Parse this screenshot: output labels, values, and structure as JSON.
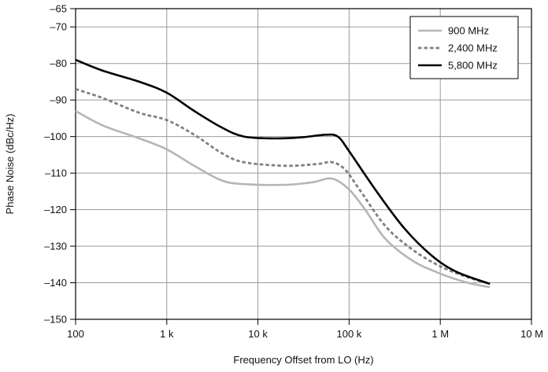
{
  "chart_data": {
    "type": "line",
    "xlabel": "Frequency Offset from LO (Hz)",
    "ylabel": "Phase Noise (dBc/Hz)",
    "x_scale": "log",
    "xlim": [
      100,
      10000000
    ],
    "ylim": [
      -150,
      -65
    ],
    "x_ticks": [
      {
        "value": 100,
        "label": "100"
      },
      {
        "value": 1000,
        "label": "1 k"
      },
      {
        "value": 10000,
        "label": "10 k"
      },
      {
        "value": 100000,
        "label": "100 k"
      },
      {
        "value": 1000000,
        "label": "1 M"
      },
      {
        "value": 10000000,
        "label": "10 M"
      }
    ],
    "y_ticks": [
      {
        "value": -65,
        "label": "–65"
      },
      {
        "value": -70,
        "label": "–70"
      },
      {
        "value": -80,
        "label": "–80"
      },
      {
        "value": -90,
        "label": "–90"
      },
      {
        "value": -100,
        "label": "–100"
      },
      {
        "value": -110,
        "label": "–110"
      },
      {
        "value": -120,
        "label": "–120"
      },
      {
        "value": -130,
        "label": "–130"
      },
      {
        "value": -140,
        "label": "–140"
      },
      {
        "value": -150,
        "label": "–150"
      }
    ],
    "grid": true,
    "legend_position": "top-right",
    "series": [
      {
        "name": "900 MHz",
        "color": "#b5b5b5",
        "dash": "solid",
        "points": [
          [
            100,
            -93
          ],
          [
            200,
            -97
          ],
          [
            500,
            -100.5
          ],
          [
            1000,
            -103.5
          ],
          [
            2000,
            -108
          ],
          [
            4000,
            -112
          ],
          [
            7000,
            -113
          ],
          [
            20000,
            -113.2
          ],
          [
            40000,
            -112.5
          ],
          [
            65000,
            -111.5
          ],
          [
            100000,
            -114.5
          ],
          [
            150000,
            -120
          ],
          [
            250000,
            -128
          ],
          [
            500000,
            -134
          ],
          [
            1000000,
            -137.5
          ],
          [
            2000000,
            -140
          ],
          [
            3500000,
            -141.2
          ]
        ]
      },
      {
        "name": "2,400 MHz",
        "color": "#808080",
        "dash": "dashed",
        "points": [
          [
            100,
            -87
          ],
          [
            200,
            -89.5
          ],
          [
            500,
            -93.5
          ],
          [
            1000,
            -95.5
          ],
          [
            2000,
            -99.5
          ],
          [
            4000,
            -104.5
          ],
          [
            7000,
            -107
          ],
          [
            20000,
            -108
          ],
          [
            45000,
            -107.5
          ],
          [
            65000,
            -107
          ],
          [
            90000,
            -109
          ],
          [
            130000,
            -114.5
          ],
          [
            250000,
            -124.5
          ],
          [
            500000,
            -131
          ],
          [
            1000000,
            -135.5
          ],
          [
            2000000,
            -138.5
          ],
          [
            3500000,
            -140.3
          ]
        ]
      },
      {
        "name": "5,800 MHz",
        "color": "#000000",
        "dash": "solid",
        "points": [
          [
            100,
            -79
          ],
          [
            200,
            -82
          ],
          [
            500,
            -85
          ],
          [
            1000,
            -88
          ],
          [
            2000,
            -93
          ],
          [
            4000,
            -97.5
          ],
          [
            7000,
            -100
          ],
          [
            15000,
            -100.5
          ],
          [
            30000,
            -100.2
          ],
          [
            55000,
            -99.5
          ],
          [
            75000,
            -100
          ],
          [
            100000,
            -104
          ],
          [
            200000,
            -115
          ],
          [
            400000,
            -125
          ],
          [
            800000,
            -132.5
          ],
          [
            1500000,
            -137
          ],
          [
            3500000,
            -140.3
          ]
        ]
      }
    ]
  }
}
